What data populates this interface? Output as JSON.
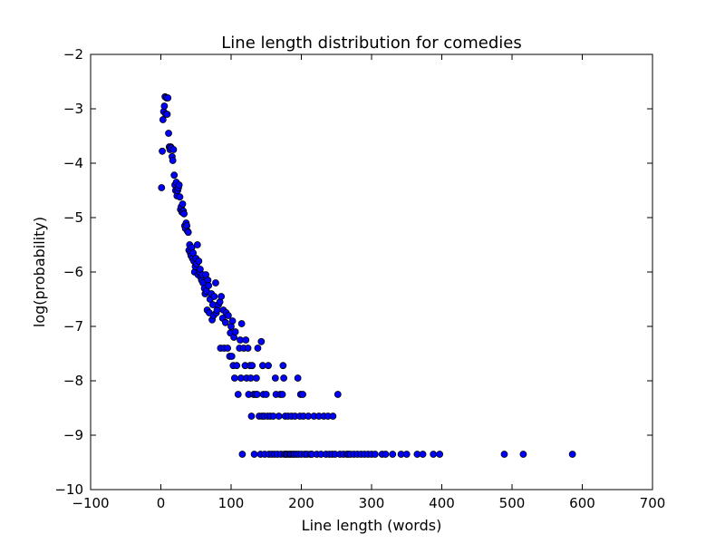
{
  "chart_data": {
    "type": "scatter",
    "title": "Line length distribution for comedies",
    "xlabel": "Line length (words)",
    "ylabel": "log(probability)",
    "xlim": [
      -100,
      700
    ],
    "ylim": [
      -10,
      -2
    ],
    "xticks": [
      -100,
      0,
      100,
      200,
      300,
      400,
      500,
      600,
      700
    ],
    "yticks": [
      -10,
      -9,
      -8,
      -7,
      -6,
      -5,
      -4,
      -3,
      -2
    ],
    "xtick_labels": [
      "−100",
      "0",
      "100",
      "200",
      "300",
      "400",
      "500",
      "600",
      "700"
    ],
    "ytick_labels": [
      "−10",
      "−9",
      "−8",
      "−7",
      "−6",
      "−5",
      "−4",
      "−3",
      "−2"
    ],
    "grid": false,
    "legend": "none",
    "marker_color": "#0000ff",
    "marker_edge_color": "#000000",
    "points": [
      [
        1,
        -4.45
      ],
      [
        2,
        -3.78
      ],
      [
        3,
        -3.2
      ],
      [
        4,
        -3.05
      ],
      [
        5,
        -2.95
      ],
      [
        6,
        -2.78
      ],
      [
        7,
        -3.1
      ],
      [
        8,
        -2.8
      ],
      [
        9,
        -3.1
      ],
      [
        10,
        -2.8
      ],
      [
        11,
        -3.45
      ],
      [
        12,
        -3.7
      ],
      [
        13,
        -3.75
      ],
      [
        14,
        -3.7
      ],
      [
        15,
        -3.72
      ],
      [
        16,
        -3.88
      ],
      [
        17,
        -3.95
      ],
      [
        18,
        -3.75
      ],
      [
        19,
        -4.22
      ],
      [
        20,
        -4.4
      ],
      [
        21,
        -4.5
      ],
      [
        22,
        -4.35
      ],
      [
        23,
        -4.6
      ],
      [
        24,
        -4.5
      ],
      [
        25,
        -4.45
      ],
      [
        26,
        -4.4
      ],
      [
        27,
        -4.62
      ],
      [
        28,
        -4.85
      ],
      [
        29,
        -4.8
      ],
      [
        30,
        -4.9
      ],
      [
        31,
        -4.75
      ],
      [
        32,
        -4.88
      ],
      [
        33,
        -4.93
      ],
      [
        34,
        -5.15
      ],
      [
        35,
        -5.2
      ],
      [
        36,
        -5.1
      ],
      [
        37,
        -5.15
      ],
      [
        38,
        -5.25
      ],
      [
        39,
        -5.27
      ],
      [
        40,
        -5.6
      ],
      [
        41,
        -5.5
      ],
      [
        42,
        -5.65
      ],
      [
        43,
        -5.7
      ],
      [
        44,
        -5.55
      ],
      [
        45,
        -5.75
      ],
      [
        46,
        -5.65
      ],
      [
        47,
        -5.8
      ],
      [
        48,
        -6.0
      ],
      [
        49,
        -5.9
      ],
      [
        50,
        -5.75
      ],
      [
        51,
        -5.85
      ],
      [
        52,
        -5.5
      ],
      [
        53,
        -6.05
      ],
      [
        54,
        -5.8
      ],
      [
        55,
        -6.0
      ],
      [
        56,
        -5.95
      ],
      [
        57,
        -6.1
      ],
      [
        58,
        -6.15
      ],
      [
        59,
        -6.05
      ],
      [
        60,
        -6.2
      ],
      [
        62,
        -6.3
      ],
      [
        63,
        -6.4
      ],
      [
        64,
        -6.05
      ],
      [
        65,
        -6.35
      ],
      [
        66,
        -6.7
      ],
      [
        67,
        -6.15
      ],
      [
        68,
        -6.25
      ],
      [
        69,
        -6.75
      ],
      [
        70,
        -6.5
      ],
      [
        72,
        -6.4
      ],
      [
        73,
        -6.88
      ],
      [
        74,
        -6.6
      ],
      [
        75,
        -6.8
      ],
      [
        76,
        -6.45
      ],
      [
        78,
        -6.2
      ],
      [
        79,
        -6.75
      ],
      [
        80,
        -6.7
      ],
      [
        82,
        -6.6
      ],
      [
        84,
        -6.55
      ],
      [
        85,
        -7.4
      ],
      [
        86,
        -6.45
      ],
      [
        88,
        -6.85
      ],
      [
        89,
        -6.7
      ],
      [
        90,
        -7.4
      ],
      [
        92,
        -6.93
      ],
      [
        93,
        -6.75
      ],
      [
        95,
        -7.4
      ],
      [
        96,
        -6.8
      ],
      [
        98,
        -7.55
      ],
      [
        99,
        -7.12
      ],
      [
        100,
        -7.0
      ],
      [
        101,
        -7.55
      ],
      [
        102,
        -6.9
      ],
      [
        103,
        -7.72
      ],
      [
        104,
        -7.2
      ],
      [
        105,
        -7.95
      ],
      [
        106,
        -7.1
      ],
      [
        108,
        -7.72
      ],
      [
        110,
        -8.25
      ],
      [
        112,
        -7.4
      ],
      [
        113,
        -7.25
      ],
      [
        114,
        -7.95
      ],
      [
        115,
        -6.95
      ],
      [
        116,
        -9.35
      ],
      [
        118,
        -7.4
      ],
      [
        120,
        -7.72
      ],
      [
        121,
        -7.25
      ],
      [
        122,
        -7.95
      ],
      [
        124,
        -7.4
      ],
      [
        125,
        -8.25
      ],
      [
        127,
        -7.72
      ],
      [
        128,
        -7.95
      ],
      [
        129,
        -8.65
      ],
      [
        130,
        -7.72
      ],
      [
        132,
        -8.25
      ],
      [
        133,
        -9.35
      ],
      [
        135,
        -8.25
      ],
      [
        136,
        -7.95
      ],
      [
        137,
        -8.25
      ],
      [
        138,
        -7.4
      ],
      [
        140,
        -8.65
      ],
      [
        142,
        -9.35
      ],
      [
        143,
        -7.28
      ],
      [
        144,
        -8.65
      ],
      [
        145,
        -7.72
      ],
      [
        146,
        -8.25
      ],
      [
        147,
        -8.65
      ],
      [
        148,
        -9.35
      ],
      [
        150,
        -8.25
      ],
      [
        152,
        -8.65
      ],
      [
        153,
        -7.72
      ],
      [
        154,
        -9.35
      ],
      [
        156,
        -8.65
      ],
      [
        158,
        -9.35
      ],
      [
        160,
        -8.65
      ],
      [
        162,
        -9.35
      ],
      [
        163,
        -7.95
      ],
      [
        164,
        -8.25
      ],
      [
        166,
        -9.35
      ],
      [
        168,
        -8.65
      ],
      [
        170,
        -8.25
      ],
      [
        171,
        -9.35
      ],
      [
        173,
        -8.25
      ],
      [
        174,
        -7.72
      ],
      [
        175,
        -7.95
      ],
      [
        176,
        -9.35
      ],
      [
        177,
        -8.65
      ],
      [
        178,
        -9.35
      ],
      [
        180,
        -9.35
      ],
      [
        181,
        -8.65
      ],
      [
        183,
        -9.35
      ],
      [
        185,
        -9.35
      ],
      [
        186,
        -8.65
      ],
      [
        188,
        -9.35
      ],
      [
        190,
        -9.35
      ],
      [
        191,
        -8.65
      ],
      [
        193,
        -9.35
      ],
      [
        195,
        -7.95
      ],
      [
        196,
        -9.35
      ],
      [
        198,
        -8.65
      ],
      [
        199,
        -8.25
      ],
      [
        200,
        -9.35
      ],
      [
        202,
        -8.25
      ],
      [
        203,
        -8.65
      ],
      [
        205,
        -9.35
      ],
      [
        208,
        -9.35
      ],
      [
        210,
        -8.65
      ],
      [
        213,
        -9.35
      ],
      [
        215,
        -9.35
      ],
      [
        218,
        -8.65
      ],
      [
        222,
        -9.35
      ],
      [
        225,
        -8.65
      ],
      [
        228,
        -9.35
      ],
      [
        232,
        -8.65
      ],
      [
        235,
        -9.35
      ],
      [
        238,
        -8.65
      ],
      [
        240,
        -9.35
      ],
      [
        244,
        -9.35
      ],
      [
        245,
        -8.65
      ],
      [
        248,
        -9.35
      ],
      [
        252,
        -8.25
      ],
      [
        255,
        -9.35
      ],
      [
        260,
        -9.35
      ],
      [
        265,
        -9.35
      ],
      [
        267,
        -9.35
      ],
      [
        270,
        -9.35
      ],
      [
        275,
        -9.35
      ],
      [
        280,
        -9.35
      ],
      [
        285,
        -9.35
      ],
      [
        290,
        -9.35
      ],
      [
        295,
        -9.35
      ],
      [
        300,
        -9.35
      ],
      [
        305,
        -9.35
      ],
      [
        315,
        -9.35
      ],
      [
        320,
        -9.35
      ],
      [
        330,
        -9.35
      ],
      [
        342,
        -9.35
      ],
      [
        350,
        -9.35
      ],
      [
        365,
        -9.35
      ],
      [
        373,
        -9.35
      ],
      [
        388,
        -9.35
      ],
      [
        397,
        -9.35
      ],
      [
        489,
        -9.35
      ],
      [
        516,
        -9.35
      ],
      [
        586,
        -9.35
      ]
    ]
  }
}
